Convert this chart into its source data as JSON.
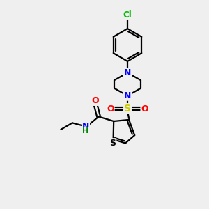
{
  "background_color": "#efefef",
  "bond_color": "#000000",
  "atom_colors": {
    "N": "#0000ff",
    "O": "#ff0000",
    "S_sulfonyl": "#cccc00",
    "S_thiophene": "#000000",
    "Cl": "#00bb00",
    "H": "#008800"
  },
  "bond_width": 1.6,
  "figsize": [
    3.0,
    3.0
  ],
  "dpi": 100
}
